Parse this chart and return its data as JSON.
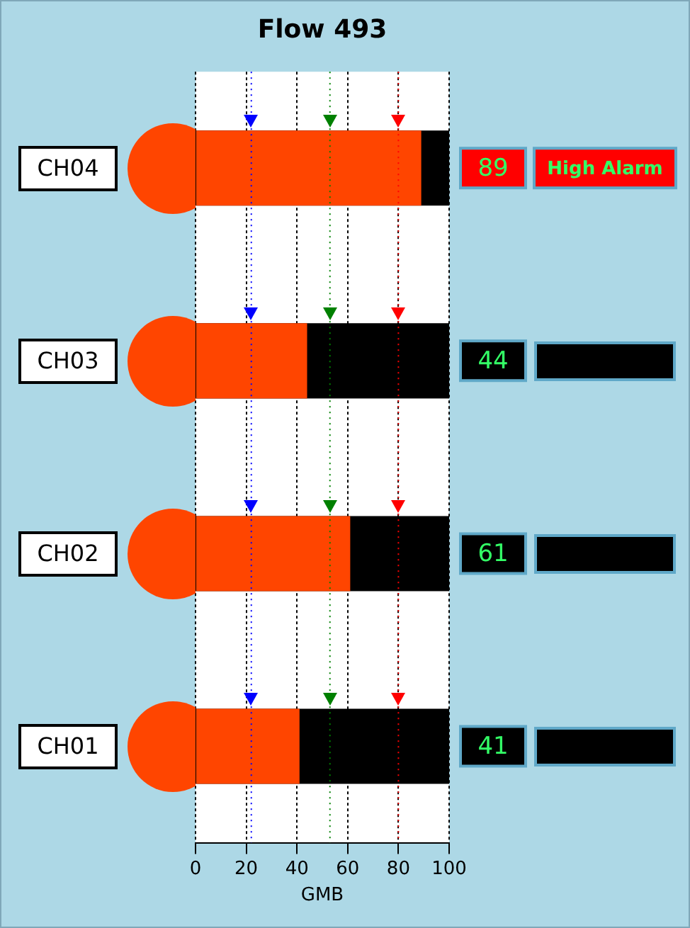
{
  "chart_data": {
    "type": "bar",
    "orientation": "horizontal",
    "title": "Flow 493",
    "xlabel": "GMB",
    "categories": [
      "CH04",
      "CH03",
      "CH02",
      "CH01"
    ],
    "values": [
      89,
      44,
      61,
      41
    ],
    "color": "#ff4500",
    "xlim": [
      0,
      100
    ],
    "xticks": [
      0,
      20,
      40,
      60,
      80,
      100
    ],
    "grid": "x",
    "data_labels": true,
    "legend": false,
    "ref_lines": [
      {
        "axis": "x",
        "value": 22,
        "color": "#0000ff"
      },
      {
        "axis": "x",
        "value": 53,
        "color": "#008000"
      },
      {
        "axis": "x",
        "value": 80,
        "color": "#ff0000"
      }
    ],
    "annotations": [
      "High Alarm"
    ]
  }
}
